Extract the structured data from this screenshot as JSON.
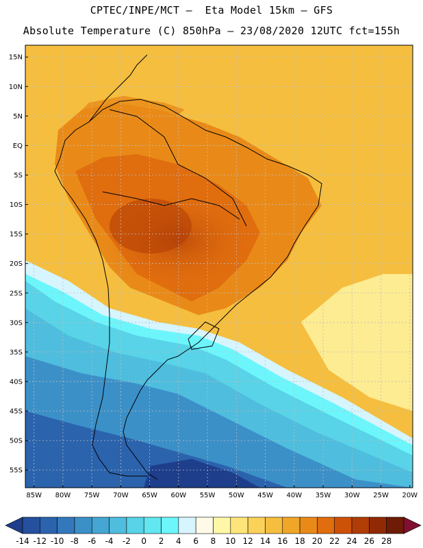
{
  "header": {
    "line1": "CPTEC/INPE/MCT –  Eta Model 15km – GFS",
    "line2": "Absolute Temperature (C) 850hPa – 23/08/2020 12UTC fct=155h"
  },
  "axes": {
    "lat_labels": [
      "15N",
      "10N",
      "5N",
      "EQ",
      "5S",
      "10S",
      "15S",
      "20S",
      "25S",
      "30S",
      "35S",
      "40S",
      "45S",
      "50S",
      "55S"
    ],
    "lat_values": [
      15,
      10,
      5,
      0,
      -5,
      -10,
      -15,
      -20,
      -25,
      -30,
      -35,
      -40,
      -45,
      -50,
      -55
    ],
    "lon_labels": [
      "85W",
      "80W",
      "75W",
      "70W",
      "65W",
      "60W",
      "55W",
      "50W",
      "45W",
      "40W",
      "35W",
      "30W",
      "25W",
      "20W"
    ],
    "lon_values": [
      -85,
      -80,
      -75,
      -70,
      -65,
      -60,
      -55,
      -50,
      -45,
      -40,
      -35,
      -30,
      -25,
      -20
    ],
    "lat_range": [
      -58,
      17
    ],
    "lon_range": [
      -86.5,
      -19.5
    ],
    "grid": true
  },
  "colorbar": {
    "labels": [
      "-14",
      "-12",
      "-10",
      "-8",
      "-6",
      "-4",
      "-2",
      "0",
      "2",
      "4",
      "6",
      "8",
      "10",
      "12",
      "14",
      "16",
      "18",
      "20",
      "22",
      "24",
      "26",
      "28"
    ],
    "colors": [
      "#1e3e8c",
      "#24509e",
      "#2b63ad",
      "#3478bc",
      "#3c90c8",
      "#46a6d3",
      "#4fbddd",
      "#58d3e8",
      "#62e6ef",
      "#6cf6fb",
      "#d6f5ff",
      "#fffae8",
      "#fff7a8",
      "#fde57a",
      "#fad25a",
      "#f5be3f",
      "#f0a628",
      "#e98a18",
      "#e06d0e",
      "#cc5208",
      "#b03c06",
      "#8f2a05",
      "#6e1c05",
      "#7f1030"
    ]
  },
  "legend_colors": {
    "land_outline": "#000000",
    "grid_line": "#bdbdbd"
  }
}
